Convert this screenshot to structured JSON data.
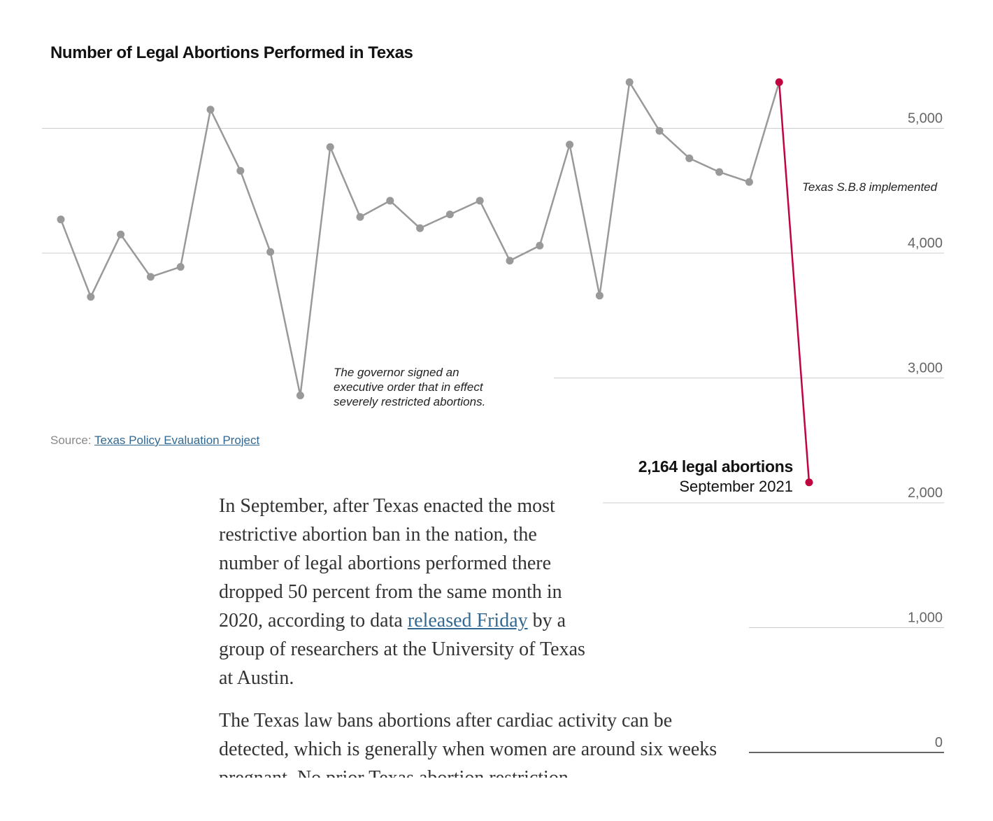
{
  "chart_data": {
    "type": "line",
    "title": "Number of Legal Abortions Performed in Texas",
    "ylim": [
      0,
      5500
    ],
    "yticks": [
      {
        "value": 5000,
        "label": "5,000"
      },
      {
        "value": 4000,
        "label": "4,000"
      },
      {
        "value": 3000,
        "label": "3,000"
      },
      {
        "value": 2000,
        "label": "2,000"
      },
      {
        "value": 1000,
        "label": "1,000"
      },
      {
        "value": 0,
        "label": "0"
      }
    ],
    "series": [
      {
        "values": [
          4270,
          3650,
          4150,
          3810,
          3890,
          5150,
          4660,
          4010,
          2860,
          4850,
          4290,
          4420,
          4200,
          4310,
          4420,
          3940,
          4060,
          4870,
          3660,
          5370,
          4980,
          4760,
          4650,
          4570,
          5370,
          2164
        ],
        "color": "#999999",
        "highlight_color": "#c0043f",
        "highlight_from_index": 24
      }
    ],
    "grid": true,
    "annotations": {
      "governor": "The governor signed an executive order that in effect severely restricted abortions.",
      "sb8": "Texas S.B.8 implemented",
      "last_value": "2,164 legal abortions",
      "last_date": "September 2021"
    },
    "source_label": "Source:",
    "source_link": "Texas Policy Evaluation Project"
  },
  "article": {
    "p1_before_link": "In September, after Texas enacted the most restrictive abortion ban in the nation, the number of legal abortions performed there dropped 50 percent from the same month in 2020, according to data ",
    "p1_link": "released Friday",
    "p1_after_link": " by a group of researchers at the University of Texas at Austin.",
    "p2": "The Texas law bans abortions after cardiac activity can be detected, which is generally when women are around six weeks pregnant. No prior Texas abortion restriction"
  }
}
